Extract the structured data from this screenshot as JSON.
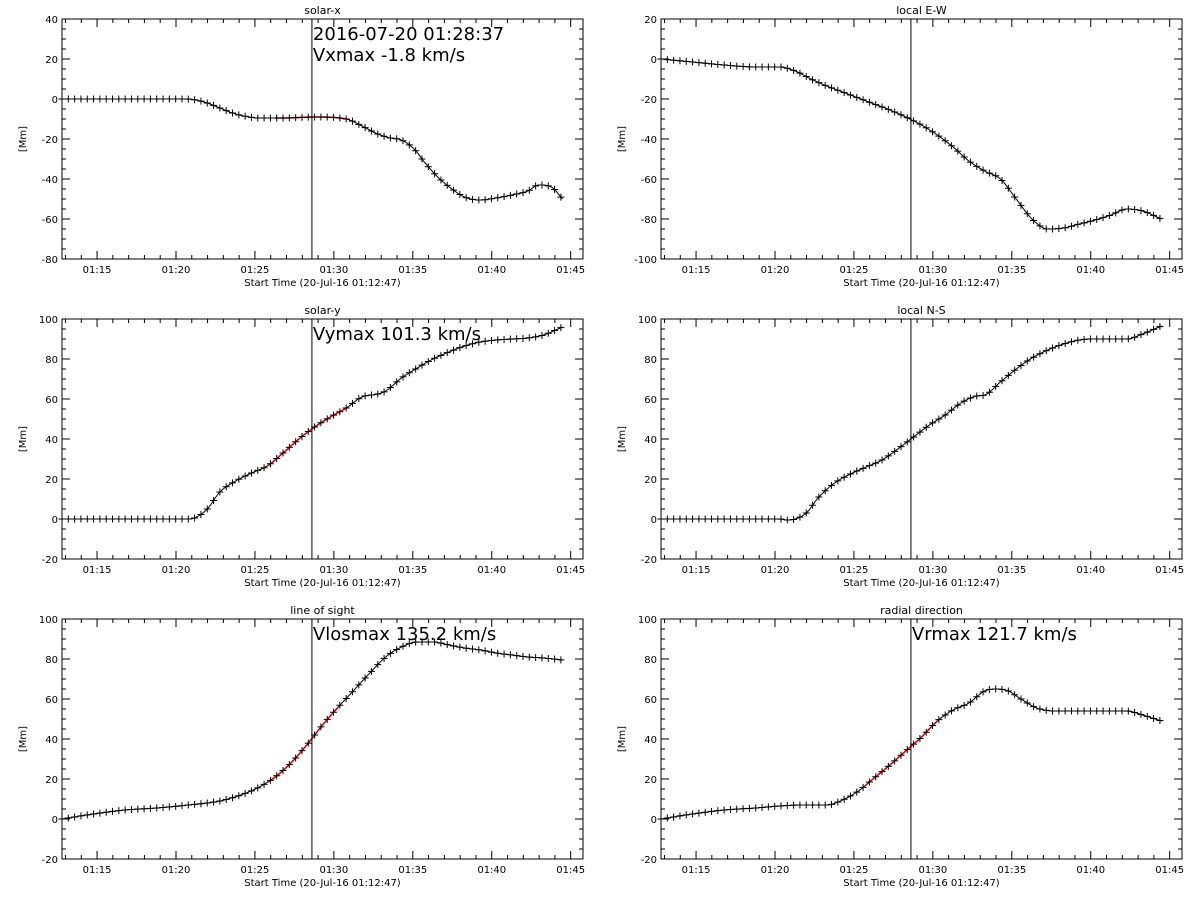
{
  "figure": {
    "x_axis_title": "Start Time (20-Jul-16 01:12:47)",
    "y_axis_title": "[Mm]",
    "x_tick_labels": [
      "01:15",
      "01:20",
      "01:25",
      "01:30",
      "01:35",
      "01:40",
      "01:45"
    ],
    "marker_time_label": "2016-07-20 01:28:37",
    "marker_color": "#000000",
    "fit_color": "#cc0000",
    "line_color": "#000000"
  },
  "chart_data": [
    {
      "id": "solar-x",
      "type": "line",
      "title": "solar-x",
      "xlabel": "Start Time (20-Jul-16 01:12:47)",
      "ylabel": "[Mm]",
      "xlim": [
        0.0,
        33.0
      ],
      "ylim": [
        -80,
        40
      ],
      "yticks": [
        -80,
        -60,
        -40,
        -20,
        0,
        20,
        40
      ],
      "annotations": [
        "2016-07-20 01:28:37",
        "Vxmax   -1.8 km/s"
      ],
      "marker_x": 15.83,
      "fit_range": [
        13.5,
        18.0
      ],
      "x": [
        0.0,
        7.8,
        8.5,
        9.2,
        10.0,
        10.8,
        11.5,
        12.5,
        14.0,
        16.0,
        18.0,
        19.0,
        20.0,
        20.8,
        21.5,
        22.3,
        23.0,
        23.8,
        24.7,
        25.5,
        26.5,
        27.5,
        28.5,
        29.5,
        30.2,
        31.0,
        31.7
      ],
      "y": [
        0,
        0,
        -0.5,
        -2,
        -4.5,
        -7,
        -8.5,
        -9.5,
        -9.5,
        -9.0,
        -10,
        -13.5,
        -17.5,
        -19.5,
        -20.5,
        -25,
        -32,
        -39,
        -45,
        -49,
        -50.5,
        -49.5,
        -48,
        -46,
        -43,
        -44,
        -50
      ]
    },
    {
      "id": "local-e-w",
      "type": "line",
      "title": "local E-W",
      "xlabel": "Start Time (20-Jul-16 01:12:47)",
      "ylabel": "[Mm]",
      "xlim": [
        0.0,
        33.0
      ],
      "ylim": [
        -100,
        20
      ],
      "yticks": [
        -100,
        -80,
        -60,
        -40,
        -20,
        0,
        20
      ],
      "annotations": [],
      "marker_x": 15.83,
      "fit_range": null,
      "x": [
        0.0,
        2.0,
        4.0,
        6.0,
        7.5,
        8.5,
        9.5,
        10.5,
        11.5,
        12.5,
        13.5,
        14.5,
        15.5,
        16.5,
        17.5,
        18.5,
        19.5,
        20.5,
        21.5,
        22.5,
        23.5,
        24.5,
        25.5,
        26.5,
        27.5,
        28.5,
        29.5,
        30.5,
        31.7
      ],
      "y": [
        0,
        -1.5,
        -3,
        -4,
        -4,
        -6,
        -10,
        -13.5,
        -16.5,
        -19.5,
        -22.5,
        -25.5,
        -29,
        -33,
        -38,
        -44,
        -51,
        -56,
        -60,
        -70,
        -80,
        -85,
        -84.5,
        -82.5,
        -80.5,
        -78,
        -75,
        -76,
        -80
      ]
    },
    {
      "id": "solar-y",
      "type": "line",
      "title": "solar-y",
      "xlabel": "Start Time (20-Jul-16 01:12:47)",
      "ylabel": "[Mm]",
      "xlim": [
        0.0,
        33.0
      ],
      "ylim": [
        -20,
        100
      ],
      "yticks": [
        -20,
        0,
        20,
        40,
        60,
        80,
        100
      ],
      "annotations": [
        "Vymax  101.3 km/s"
      ],
      "marker_x": 15.83,
      "fit_range": [
        13.0,
        18.0
      ],
      "x": [
        0.0,
        4.0,
        8.0,
        8.4,
        9.2,
        10.0,
        11.0,
        12.0,
        13.0,
        14.0,
        15.0,
        16.0,
        17.0,
        18.0,
        19.0,
        20.0,
        20.5,
        21.5,
        22.5,
        23.5,
        24.5,
        25.5,
        26.5,
        27.5,
        28.5,
        29.5,
        30.5,
        31.7
      ],
      "y": [
        0,
        0,
        0,
        0.5,
        5,
        13.5,
        19,
        23,
        26.5,
        33,
        40,
        46,
        51,
        55.5,
        61,
        62.5,
        64,
        70.5,
        75.5,
        80,
        83.5,
        86.5,
        88.5,
        89.5,
        90,
        90.5,
        92,
        96
      ]
    },
    {
      "id": "local-n-s",
      "type": "line",
      "title": "local N-S",
      "xlabel": "Start Time (20-Jul-16 01:12:47)",
      "ylabel": "[Mm]",
      "xlim": [
        0.0,
        33.0
      ],
      "ylim": [
        -20,
        100
      ],
      "yticks": [
        -20,
        0,
        20,
        40,
        60,
        80,
        100
      ],
      "annotations": [],
      "marker_x": 15.83,
      "fit_range": null,
      "x": [
        0.0,
        4.0,
        7.5,
        8.0,
        8.5,
        9.2,
        10.0,
        11.0,
        12.0,
        13.0,
        14.0,
        15.0,
        16.0,
        17.0,
        18.0,
        19.0,
        20.0,
        20.5,
        21.5,
        22.5,
        23.5,
        24.5,
        25.5,
        26.5,
        27.5,
        28.5,
        29.5,
        30.5,
        31.7
      ],
      "y": [
        0,
        0,
        0,
        -0.5,
        0,
        3,
        11,
        18,
        22.5,
        26,
        29.5,
        35,
        41,
        47,
        52,
        58,
        61.5,
        62,
        68.5,
        75,
        80.5,
        84.5,
        87.5,
        89.5,
        90,
        90,
        90,
        92.5,
        96.5
      ]
    },
    {
      "id": "line-of-sight",
      "type": "line",
      "title": "line of sight",
      "xlabel": "Start Time (20-Jul-16 01:12:47)",
      "ylabel": "[Mm]",
      "xlim": [
        0.0,
        33.0
      ],
      "ylim": [
        -20,
        100
      ],
      "yticks": [
        -20,
        0,
        20,
        40,
        60,
        80,
        100
      ],
      "annotations": [
        "Vlosmax  135.2 km/s"
      ],
      "marker_x": 15.83,
      "fit_range": [
        13.0,
        17.5
      ],
      "x": [
        0.0,
        2.0,
        4.0,
        6.0,
        8.0,
        10.0,
        11.5,
        12.5,
        13.5,
        14.5,
        15.5,
        16.5,
        17.5,
        18.5,
        19.5,
        20.5,
        21.5,
        22.5,
        23.5,
        24.5,
        25.5,
        26.5,
        27.5,
        28.5,
        29.5,
        30.5,
        31.7
      ],
      "y": [
        0,
        2.5,
        4.5,
        5.5,
        7,
        9,
        12.5,
        16,
        21,
        28,
        37,
        47,
        56,
        64.5,
        73,
        81,
        86,
        88.5,
        88.5,
        87,
        85.5,
        84.5,
        83,
        82,
        81,
        80.5,
        79.5
      ]
    },
    {
      "id": "radial-direction",
      "type": "line",
      "title": "radial direction",
      "xlabel": "Start Time (20-Jul-16 01:12:47)",
      "ylabel": "[Mm]",
      "xlim": [
        0.0,
        33.0
      ],
      "ylim": [
        -20,
        100
      ],
      "yticks": [
        -20,
        0,
        20,
        40,
        60,
        80,
        100
      ],
      "annotations": [
        "Vrmax   121.7 km/s"
      ],
      "marker_x": 15.83,
      "fit_range": [
        13.0,
        17.5
      ],
      "x": [
        0.0,
        2.0,
        4.0,
        6.0,
        7.5,
        9.0,
        10.5,
        11.5,
        12.5,
        13.5,
        14.5,
        15.5,
        16.5,
        17.5,
        18.5,
        19.5,
        20.5,
        21.3,
        22.0,
        22.8,
        23.8,
        25.0,
        26.5,
        28.0,
        29.5,
        30.5,
        31.7
      ],
      "y": [
        0,
        2.5,
        4.5,
        5.5,
        6.5,
        7,
        7,
        9.5,
        14,
        20.5,
        27,
        34,
        41,
        49,
        54.5,
        58,
        64,
        65,
        64,
        60,
        55.5,
        54,
        54,
        54,
        54,
        52,
        49
      ]
    }
  ]
}
